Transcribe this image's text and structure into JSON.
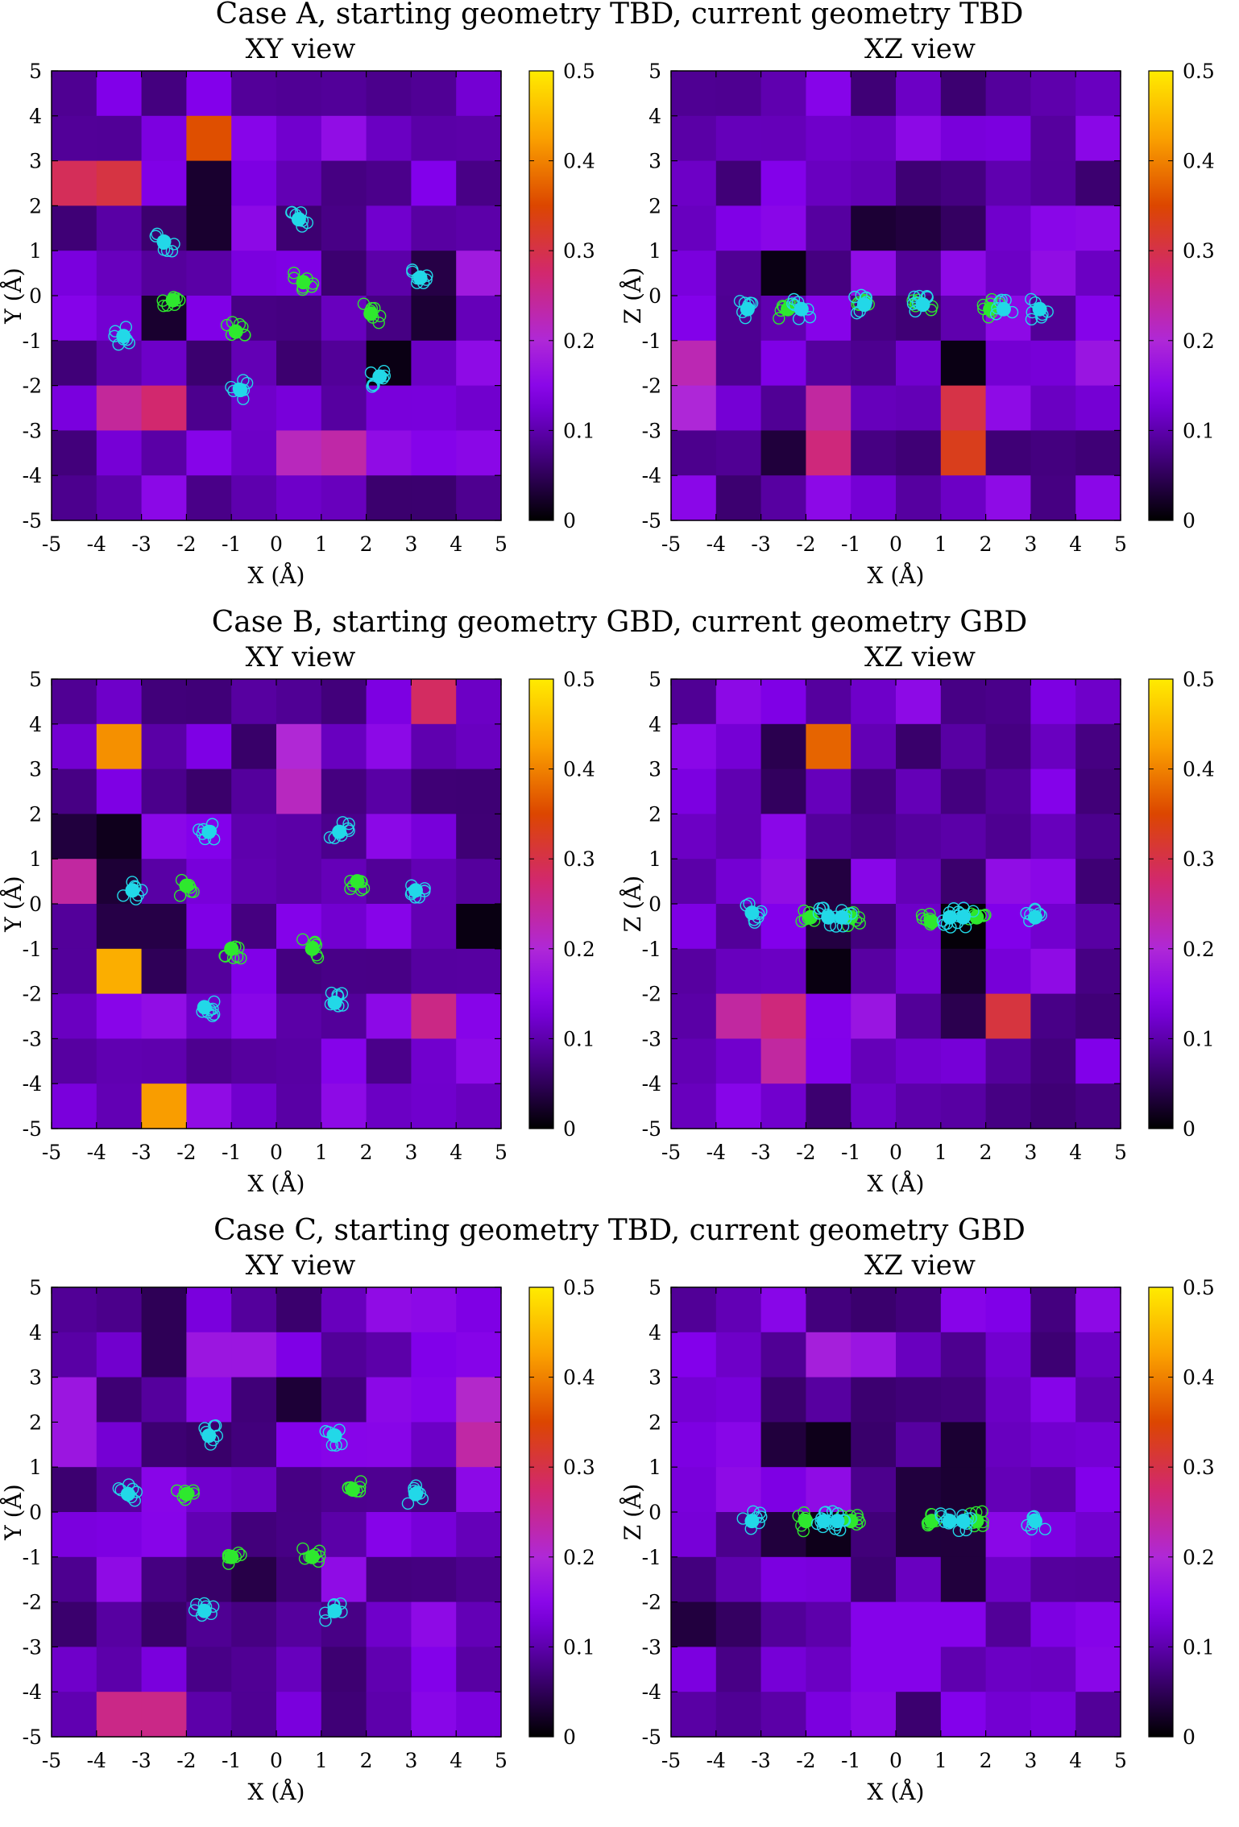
{
  "chart_data": [
    {
      "type": "heatmap",
      "case_title": "Case A, starting geometry TBD, current geometry TBD",
      "title": "XY view",
      "xlabel": "X (Å)",
      "ylabel": "Y (Å)",
      "xlim": [
        -5,
        5
      ],
      "ylim": [
        -5,
        5
      ],
      "x_ticks": [
        "-5",
        "-4",
        "-3",
        "-2",
        "-1",
        "0",
        "1",
        "2",
        "3",
        "4",
        "5"
      ],
      "y_ticks": [
        "-5",
        "-4",
        "-3",
        "-2",
        "-1",
        "0",
        "1",
        "2",
        "3",
        "4",
        "5"
      ],
      "colorbar": {
        "range": [
          0,
          0.5
        ],
        "ticks": [
          "0",
          "0.1",
          "0.2",
          "0.3",
          "0.4",
          "0.5"
        ],
        "colormap": "black-purple-magenta-orange-yellow"
      },
      "grid_n": 10,
      "seed": 11,
      "hotspots": [
        [
          -3.9,
          2.7,
          0.34
        ],
        [
          -2.8,
          -2.6,
          0.3
        ],
        [
          -1.3,
          3.3,
          0.38
        ],
        [
          1.1,
          -3.3,
          0.27
        ],
        [
          4.0,
          0.4,
          0.22
        ]
      ],
      "darkspots": [
        [
          -1.3,
          2.0,
          0.0
        ],
        [
          2.3,
          -1.6,
          0.0
        ],
        [
          3.5,
          -0.1,
          0.01
        ],
        [
          -2.6,
          -0.6,
          0.02
        ]
      ],
      "atoms_cyan": [
        [
          -2.5,
          1.2
        ],
        [
          0.5,
          1.7
        ],
        [
          3.2,
          0.4
        ],
        [
          -3.4,
          -0.9
        ],
        [
          2.3,
          -1.8
        ],
        [
          -0.8,
          -2.1
        ]
      ],
      "atoms_green": [
        [
          -2.3,
          -0.1
        ],
        [
          0.6,
          0.3
        ],
        [
          2.1,
          -0.4
        ],
        [
          -0.9,
          -0.8
        ]
      ]
    },
    {
      "type": "heatmap",
      "title": "XZ view",
      "xlabel": "X (Å)",
      "ylabel": "Z (Å)",
      "xlim": [
        -5,
        5
      ],
      "ylim": [
        -5,
        5
      ],
      "x_ticks": [
        "-5",
        "-4",
        "-3",
        "-2",
        "-1",
        "0",
        "1",
        "2",
        "3",
        "4",
        "5"
      ],
      "y_ticks": [
        "-5",
        "-4",
        "-3",
        "-2",
        "-1",
        "0",
        "1",
        "2",
        "3",
        "4",
        "5"
      ],
      "colorbar": {
        "range": [
          0,
          0.5
        ],
        "ticks": [
          "0",
          "0.1",
          "0.2",
          "0.3",
          "0.4",
          "0.5"
        ],
        "colormap": "black-purple-magenta-orange-yellow"
      },
      "grid_n": 10,
      "seed": 23,
      "hotspots": [
        [
          -1.8,
          -3.2,
          0.3
        ],
        [
          1.7,
          -3.2,
          0.36
        ],
        [
          -4.8,
          -1.8,
          0.26
        ],
        [
          4.7,
          -1.2,
          0.2
        ]
      ],
      "darkspots": [
        [
          -2.7,
          0.6,
          0.0
        ],
        [
          -0.7,
          1.5,
          0.02
        ],
        [
          0.8,
          1.4,
          0.02
        ],
        [
          1.3,
          -1.4,
          0.0
        ],
        [
          -2.3,
          -3.7,
          0.02
        ]
      ],
      "atoms_cyan": [
        [
          -3.3,
          -0.3
        ],
        [
          -2.1,
          -0.3
        ],
        [
          -0.7,
          -0.2
        ],
        [
          0.6,
          -0.2
        ],
        [
          2.4,
          -0.3
        ],
        [
          3.2,
          -0.3
        ]
      ],
      "atoms_green": [
        [
          -2.4,
          -0.3
        ],
        [
          -0.7,
          -0.2
        ],
        [
          0.6,
          -0.2
        ],
        [
          2.1,
          -0.3
        ]
      ]
    },
    {
      "type": "heatmap",
      "case_title": "Case B, starting geometry GBD, current geometry GBD",
      "title": "XY view",
      "xlabel": "X (Å)",
      "ylabel": "Y (Å)",
      "xlim": [
        -5,
        5
      ],
      "ylim": [
        -5,
        5
      ],
      "x_ticks": [
        "-5",
        "-4",
        "-3",
        "-2",
        "-1",
        "0",
        "1",
        "2",
        "3",
        "4",
        "5"
      ],
      "y_ticks": [
        "-5",
        "-4",
        "-3",
        "-2",
        "-1",
        "0",
        "1",
        "2",
        "3",
        "4",
        "5"
      ],
      "colorbar": {
        "range": [
          0,
          0.5
        ],
        "ticks": [
          "0",
          "0.1",
          "0.2",
          "0.3",
          "0.4",
          "0.5"
        ],
        "colormap": "black-purple-magenta-orange-yellow"
      },
      "grid_n": 10,
      "seed": 37,
      "hotspots": [
        [
          -3.6,
          3.5,
          0.42
        ],
        [
          -3.6,
          -1.6,
          0.45
        ],
        [
          -2.3,
          -4.4,
          0.44
        ],
        [
          -4.8,
          1.2,
          0.3
        ],
        [
          3.5,
          4.7,
          0.3
        ],
        [
          3.4,
          -2.6,
          0.27
        ],
        [
          0.6,
          2.9,
          0.25
        ]
      ],
      "darkspots": [
        [
          -3.8,
          1.6,
          0.0
        ],
        [
          -3.4,
          0.1,
          0.01
        ],
        [
          4.5,
          -0.5,
          0.01
        ],
        [
          -2.4,
          -0.9,
          0.02
        ]
      ],
      "atoms_cyan": [
        [
          -1.5,
          1.6
        ],
        [
          1.4,
          1.6
        ],
        [
          -3.2,
          0.3
        ],
        [
          3.1,
          0.3
        ],
        [
          -1.6,
          -2.3
        ],
        [
          1.3,
          -2.2
        ]
      ],
      "atoms_green": [
        [
          -2.0,
          0.4
        ],
        [
          1.8,
          0.5
        ],
        [
          -1.0,
          -1.0
        ],
        [
          0.8,
          -1.0
        ]
      ]
    },
    {
      "type": "heatmap",
      "title": "XZ view",
      "xlabel": "X (Å)",
      "ylabel": "Z (Å)",
      "xlim": [
        -5,
        5
      ],
      "ylim": [
        -5,
        5
      ],
      "x_ticks": [
        "-5",
        "-4",
        "-3",
        "-2",
        "-1",
        "0",
        "1",
        "2",
        "3",
        "4",
        "5"
      ],
      "y_ticks": [
        "-5",
        "-4",
        "-3",
        "-2",
        "-1",
        "0",
        "1",
        "2",
        "3",
        "4",
        "5"
      ],
      "colorbar": {
        "range": [
          0,
          0.5
        ],
        "ticks": [
          "0",
          "0.1",
          "0.2",
          "0.3",
          "0.4",
          "0.5"
        ],
        "colormap": "black-purple-magenta-orange-yellow"
      },
      "grid_n": 10,
      "seed": 51,
      "hotspots": [
        [
          -1.8,
          3.4,
          0.4
        ],
        [
          -2.8,
          -2.8,
          0.3
        ],
        [
          2.3,
          -2.7,
          0.33
        ],
        [
          -0.8,
          -2.7,
          0.2
        ]
      ],
      "darkspots": [
        [
          -1.7,
          0.0,
          0.01
        ],
        [
          -1.3,
          -1.5,
          0.0
        ],
        [
          1.4,
          -0.5,
          0.0
        ],
        [
          1.6,
          -1.8,
          0.01
        ],
        [
          -2.8,
          3.1,
          0.02
        ]
      ],
      "atoms_cyan": [
        [
          -3.2,
          -0.2
        ],
        [
          -1.5,
          -0.3
        ],
        [
          -1.2,
          -0.3
        ],
        [
          1.2,
          -0.3
        ],
        [
          1.5,
          -0.3
        ],
        [
          3.1,
          -0.3
        ]
      ],
      "atoms_green": [
        [
          -1.9,
          -0.3
        ],
        [
          -1.0,
          -0.3
        ],
        [
          0.8,
          -0.4
        ],
        [
          1.8,
          -0.3
        ]
      ]
    },
    {
      "type": "heatmap",
      "case_title": "Case C, starting geometry TBD, current geometry GBD",
      "title": "XY view",
      "xlabel": "X (Å)",
      "ylabel": "Y (Å)",
      "xlim": [
        -5,
        5
      ],
      "ylim": [
        -5,
        5
      ],
      "x_ticks": [
        "-5",
        "-4",
        "-3",
        "-2",
        "-1",
        "0",
        "1",
        "2",
        "3",
        "4",
        "5"
      ],
      "y_ticks": [
        "-5",
        "-4",
        "-3",
        "-2",
        "-1",
        "0",
        "1",
        "2",
        "3",
        "4",
        "5"
      ],
      "colorbar": {
        "range": [
          0,
          0.5
        ],
        "ticks": [
          "0",
          "0.1",
          "0.2",
          "0.3",
          "0.4",
          "0.5"
        ],
        "colormap": "black-purple-magenta-orange-yellow"
      },
      "grid_n": 10,
      "seed": 67,
      "hotspots": [
        [
          -3.0,
          -4.3,
          0.3
        ],
        [
          4.8,
          1.8,
          0.27
        ],
        [
          -4.8,
          2.0,
          0.22
        ],
        [
          -1.0,
          3.8,
          0.22
        ]
      ],
      "darkspots": [
        [
          -2.2,
          4.0,
          0.02
        ],
        [
          0.4,
          2.3,
          0.02
        ],
        [
          -0.6,
          -1.3,
          0.03
        ]
      ],
      "atoms_cyan": [
        [
          -1.5,
          1.7
        ],
        [
          1.3,
          1.7
        ],
        [
          -3.3,
          0.4
        ],
        [
          3.1,
          0.4
        ],
        [
          -1.6,
          -2.2
        ],
        [
          1.3,
          -2.2
        ]
      ],
      "atoms_green": [
        [
          -2.0,
          0.4
        ],
        [
          1.7,
          0.5
        ],
        [
          -1.0,
          -1.0
        ],
        [
          0.8,
          -1.0
        ]
      ]
    },
    {
      "type": "heatmap",
      "title": "XZ view",
      "xlabel": "X (Å)",
      "ylabel": "Z (Å)",
      "xlim": [
        -5,
        5
      ],
      "ylim": [
        -5,
        5
      ],
      "x_ticks": [
        "-5",
        "-4",
        "-3",
        "-2",
        "-1",
        "0",
        "1",
        "2",
        "3",
        "4",
        "5"
      ],
      "y_ticks": [
        "-5",
        "-4",
        "-3",
        "-2",
        "-1",
        "0",
        "1",
        "2",
        "3",
        "4",
        "5"
      ],
      "colorbar": {
        "range": [
          0,
          0.5
        ],
        "ticks": [
          "0",
          "0.1",
          "0.2",
          "0.3",
          "0.4",
          "0.5"
        ],
        "colormap": "black-purple-magenta-orange-yellow"
      },
      "grid_n": 10,
      "seed": 83,
      "hotspots": [
        [
          -4.6,
          -2.5,
          0.25
        ],
        [
          -1.1,
          3.4,
          0.22
        ],
        [
          0.0,
          -3.0,
          0.2
        ]
      ],
      "darkspots": [
        [
          -1.8,
          1.5,
          0.0
        ],
        [
          -1.8,
          -0.5,
          0.0
        ],
        [
          1.2,
          1.0,
          0.0
        ],
        [
          1.5,
          -1.0,
          0.01
        ],
        [
          1.0,
          0.0,
          0.0
        ],
        [
          -4.2,
          -2.6,
          0.02
        ]
      ],
      "atoms_cyan": [
        [
          -3.2,
          -0.2
        ],
        [
          -1.6,
          -0.2
        ],
        [
          -1.3,
          -0.2
        ],
        [
          1.2,
          -0.2
        ],
        [
          1.5,
          -0.2
        ],
        [
          3.1,
          -0.2
        ]
      ],
      "atoms_green": [
        [
          -2.0,
          -0.2
        ],
        [
          -1.0,
          -0.2
        ],
        [
          0.8,
          -0.2
        ],
        [
          1.8,
          -0.2
        ]
      ]
    }
  ],
  "colors": {
    "cyan_atom": "#22d8e8",
    "green_atom": "#2ee82e"
  }
}
